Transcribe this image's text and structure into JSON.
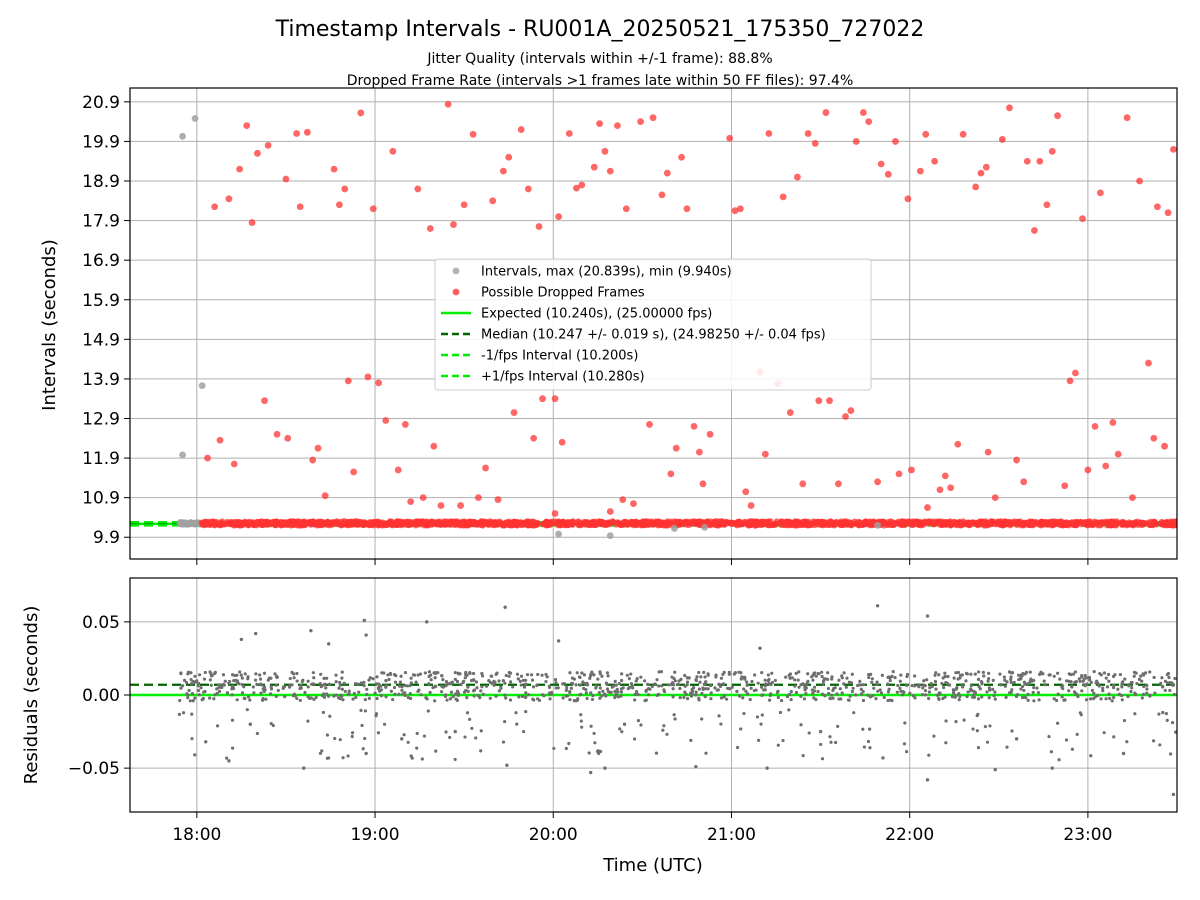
{
  "chart_data": [
    {
      "type": "scatter",
      "title": "Timestamp Intervals - RU001A_20250521_175350_727022",
      "subtitles": [
        "Jitter Quality (intervals within +/-1 frame): 88.8%",
        "Dropped Frame Rate (intervals >1 frames late within 50 FF files): 97.4%"
      ],
      "ylabel": "Intervals (seconds)",
      "xlabel": "",
      "xlim": [
        17.625,
        23.5
      ],
      "ylim": [
        9.35,
        21.25
      ],
      "x_ticks": [
        18,
        19,
        20,
        21,
        22,
        23
      ],
      "y_ticks": [
        9.9,
        10.9,
        11.9,
        12.9,
        13.9,
        14.9,
        15.9,
        16.9,
        17.9,
        18.9,
        19.9,
        20.9
      ],
      "y_tick_labels": [
        "9.9",
        "10.9",
        "11.9",
        "12.9",
        "13.9",
        "14.9",
        "15.9",
        "16.9",
        "17.9",
        "18.9",
        "19.9",
        "20.9"
      ],
      "grid": true,
      "legend": {
        "position": "center",
        "entries": [
          {
            "label": "Intervals, max (20.839s), min (9.940s)",
            "style": "marker",
            "color": "#a0a0a0"
          },
          {
            "label": "Possible Dropped Frames",
            "style": "marker",
            "color": "#ff3333"
          },
          {
            "label": "Expected (10.240s), (25.00000 fps)",
            "style": "solid",
            "color": "#00ee00"
          },
          {
            "label": "Median (10.247 +/- 0.019 s), (24.98250 +/- 0.04 fps)",
            "style": "dashed",
            "color": "#006400"
          },
          {
            "label": "-1/fps Interval (10.200s)",
            "style": "dashed",
            "color": "#00ee00"
          },
          {
            "label": "+1/fps Interval (10.280s)",
            "style": "dashed",
            "color": "#00ee00"
          }
        ]
      },
      "reference_lines": {
        "expected": 10.24,
        "median": 10.247,
        "minus_fps": 10.2,
        "plus_fps": 10.28
      },
      "series": [
        {
          "name": "Intervals, max (20.839s), min (9.940s)",
          "color": "#a0a0a0",
          "points": [
            [
              17.92,
              20.03
            ],
            [
              17.99,
              20.48
            ],
            [
              18.03,
              13.73
            ],
            [
              17.92,
              11.98
            ],
            [
              20.03,
              9.98
            ],
            [
              20.32,
              9.94
            ],
            [
              20.68,
              10.12
            ],
            [
              20.85,
              10.15
            ],
            [
              21.82,
              10.2
            ]
          ],
          "band": {
            "x": [
              17.9,
              18.02
            ],
            "y": [
              10.22,
              10.28
            ],
            "count": 40
          }
        },
        {
          "name": "Possible Dropped Frames",
          "color": "#ff3333",
          "points": [
            [
              18.1,
              18.25
            ],
            [
              18.18,
              18.45
            ],
            [
              18.24,
              19.2
            ],
            [
              18.28,
              20.3
            ],
            [
              18.31,
              17.85
            ],
            [
              18.34,
              19.6
            ],
            [
              18.4,
              19.8
            ],
            [
              18.5,
              18.95
            ],
            [
              18.56,
              20.1
            ],
            [
              18.58,
              18.25
            ],
            [
              18.62,
              20.13
            ],
            [
              18.77,
              19.2
            ],
            [
              18.8,
              18.3
            ],
            [
              18.83,
              18.7
            ],
            [
              18.92,
              20.62
            ],
            [
              18.99,
              18.2
            ],
            [
              19.1,
              19.65
            ],
            [
              19.24,
              18.7
            ],
            [
              19.31,
              17.7
            ],
            [
              19.41,
              20.84
            ],
            [
              19.44,
              17.8
            ],
            [
              19.5,
              18.3
            ],
            [
              19.55,
              20.08
            ],
            [
              19.66,
              18.4
            ],
            [
              19.72,
              19.15
            ],
            [
              19.75,
              19.5
            ],
            [
              19.82,
              20.2
            ],
            [
              19.86,
              18.7
            ],
            [
              19.92,
              17.75
            ],
            [
              20.03,
              18.0
            ],
            [
              20.09,
              20.1
            ],
            [
              20.13,
              18.72
            ],
            [
              20.16,
              18.8
            ],
            [
              20.23,
              19.25
            ],
            [
              20.26,
              20.35
            ],
            [
              20.29,
              19.65
            ],
            [
              20.32,
              19.15
            ],
            [
              20.36,
              20.3
            ],
            [
              20.41,
              18.2
            ],
            [
              20.49,
              20.4
            ],
            [
              20.56,
              20.5
            ],
            [
              20.61,
              18.55
            ],
            [
              20.64,
              19.1
            ],
            [
              20.72,
              19.5
            ],
            [
              20.75,
              18.2
            ],
            [
              20.99,
              19.98
            ],
            [
              21.02,
              18.15
            ],
            [
              21.05,
              18.2
            ],
            [
              21.21,
              20.1
            ],
            [
              21.29,
              18.5
            ],
            [
              21.37,
              19.0
            ],
            [
              21.43,
              20.1
            ],
            [
              21.47,
              19.85
            ],
            [
              21.53,
              20.63
            ],
            [
              21.7,
              19.9
            ],
            [
              21.74,
              20.63
            ],
            [
              21.77,
              20.4
            ],
            [
              21.84,
              19.33
            ],
            [
              21.88,
              19.07
            ],
            [
              21.92,
              19.9
            ],
            [
              21.99,
              18.45
            ],
            [
              22.06,
              19.15
            ],
            [
              22.09,
              20.08
            ],
            [
              22.14,
              19.4
            ],
            [
              22.3,
              20.08
            ],
            [
              22.37,
              18.75
            ],
            [
              22.4,
              19.1
            ],
            [
              22.43,
              19.25
            ],
            [
              22.52,
              19.95
            ],
            [
              22.56,
              20.75
            ],
            [
              22.66,
              19.4
            ],
            [
              22.7,
              17.65
            ],
            [
              22.73,
              19.4
            ],
            [
              22.77,
              18.3
            ],
            [
              22.8,
              19.65
            ],
            [
              22.83,
              20.55
            ],
            [
              22.97,
              17.95
            ],
            [
              23.07,
              18.6
            ],
            [
              23.22,
              20.5
            ],
            [
              23.29,
              18.9
            ],
            [
              23.39,
              18.25
            ],
            [
              23.45,
              18.1
            ],
            [
              23.48,
              19.7
            ],
            [
              18.06,
              11.9
            ],
            [
              18.13,
              12.35
            ],
            [
              18.21,
              11.75
            ],
            [
              18.38,
              13.35
            ],
            [
              18.45,
              12.5
            ],
            [
              18.51,
              12.4
            ],
            [
              18.65,
              11.85
            ],
            [
              18.68,
              12.15
            ],
            [
              18.72,
              10.95
            ],
            [
              18.85,
              13.85
            ],
            [
              18.88,
              11.55
            ],
            [
              18.96,
              13.95
            ],
            [
              19.02,
              13.8
            ],
            [
              19.06,
              12.85
            ],
            [
              19.13,
              11.6
            ],
            [
              19.17,
              12.75
            ],
            [
              19.2,
              10.8
            ],
            [
              19.27,
              10.9
            ],
            [
              19.33,
              12.2
            ],
            [
              19.37,
              10.7
            ],
            [
              19.48,
              10.7
            ],
            [
              19.58,
              10.9
            ],
            [
              19.62,
              11.65
            ],
            [
              19.69,
              10.85
            ],
            [
              19.78,
              13.05
            ],
            [
              19.89,
              12.4
            ],
            [
              19.94,
              13.4
            ],
            [
              20.01,
              13.4
            ],
            [
              20.05,
              12.3
            ],
            [
              20.01,
              10.5
            ],
            [
              20.32,
              10.55
            ],
            [
              20.39,
              10.85
            ],
            [
              20.45,
              10.75
            ],
            [
              20.54,
              12.75
            ],
            [
              20.66,
              11.5
            ],
            [
              20.69,
              12.15
            ],
            [
              20.79,
              12.7
            ],
            [
              20.82,
              12.05
            ],
            [
              20.84,
              11.25
            ],
            [
              20.88,
              12.5
            ],
            [
              21.08,
              11.05
            ],
            [
              21.11,
              10.7
            ],
            [
              21.16,
              14.08
            ],
            [
              21.19,
              12.0
            ],
            [
              21.26,
              13.78
            ],
            [
              21.33,
              13.05
            ],
            [
              21.4,
              11.25
            ],
            [
              21.49,
              13.35
            ],
            [
              21.55,
              13.35
            ],
            [
              21.6,
              11.25
            ],
            [
              21.64,
              12.95
            ],
            [
              21.67,
              13.1
            ],
            [
              21.82,
              11.3
            ],
            [
              21.94,
              11.5
            ],
            [
              22.01,
              11.6
            ],
            [
              22.1,
              10.65
            ],
            [
              22.17,
              11.1
            ],
            [
              22.2,
              11.45
            ],
            [
              22.23,
              11.15
            ],
            [
              22.27,
              12.25
            ],
            [
              22.44,
              12.05
            ],
            [
              22.48,
              10.9
            ],
            [
              22.6,
              11.85
            ],
            [
              22.64,
              11.3
            ],
            [
              22.87,
              11.2
            ],
            [
              22.9,
              13.85
            ],
            [
              22.93,
              14.05
            ],
            [
              23.0,
              11.6
            ],
            [
              23.04,
              12.7
            ],
            [
              23.1,
              11.7
            ],
            [
              23.14,
              12.8
            ],
            [
              23.17,
              12.0
            ],
            [
              23.25,
              10.9
            ],
            [
              23.34,
              14.3
            ],
            [
              23.37,
              12.4
            ],
            [
              23.43,
              12.2
            ]
          ],
          "band": {
            "x": [
              18.02,
              23.5
            ],
            "y": [
              10.2,
              10.3
            ],
            "count": 1600
          }
        }
      ]
    },
    {
      "type": "scatter",
      "ylabel": "Residuals (seconds)",
      "xlabel": "Time (UTC)",
      "xlim": [
        17.625,
        23.5
      ],
      "ylim": [
        -0.08,
        0.08
      ],
      "x_ticks": [
        18,
        19,
        20,
        21,
        22,
        23
      ],
      "x_tick_labels": [
        "18:00",
        "19:00",
        "20:00",
        "21:00",
        "22:00",
        "23:00"
      ],
      "y_ticks": [
        0.05,
        0.0,
        -0.05
      ],
      "y_tick_labels": [
        "0.05",
        "0.00",
        "−0.05"
      ],
      "grid": true,
      "reference_lines": {
        "expected": 0.0,
        "median": 0.007
      },
      "series": [
        {
          "name": "Residuals",
          "color": "#6e6e6e",
          "points": [
            [
              18.25,
              0.038
            ],
            [
              18.33,
              0.042
            ],
            [
              18.64,
              0.044
            ],
            [
              18.74,
              0.035
            ],
            [
              18.94,
              0.051
            ],
            [
              18.95,
              0.041
            ],
            [
              19.29,
              0.05
            ],
            [
              19.73,
              0.06
            ],
            [
              20.03,
              0.037
            ],
            [
              21.16,
              0.032
            ],
            [
              21.82,
              0.061
            ],
            [
              22.1,
              0.054
            ],
            [
              18.05,
              -0.032
            ],
            [
              18.18,
              -0.045
            ],
            [
              18.3,
              -0.02
            ],
            [
              18.6,
              -0.05
            ],
            [
              18.95,
              -0.04
            ],
            [
              19.45,
              -0.025
            ],
            [
              19.74,
              -0.048
            ],
            [
              20.21,
              -0.053
            ],
            [
              20.29,
              -0.05
            ],
            [
              20.8,
              -0.049
            ],
            [
              21.2,
              -0.05
            ],
            [
              21.85,
              -0.043
            ],
            [
              22.1,
              -0.058
            ],
            [
              22.48,
              -0.051
            ],
            [
              22.8,
              -0.05
            ],
            [
              23.2,
              -0.04
            ],
            [
              23.48,
              -0.068
            ],
            [
              23.42,
              -0.012
            ],
            [
              19.15,
              -0.03
            ],
            [
              20.4,
              -0.02
            ],
            [
              21.5,
              -0.025
            ],
            [
              22.6,
              -0.03
            ]
          ],
          "band": {
            "x": [
              17.9,
              23.5
            ],
            "y": [
              -0.004,
              0.016
            ],
            "count": 1100
          },
          "scatter_band": {
            "x": [
              17.9,
              23.5
            ],
            "y": [
              -0.045,
              -0.01
            ],
            "count": 160
          }
        }
      ]
    }
  ]
}
